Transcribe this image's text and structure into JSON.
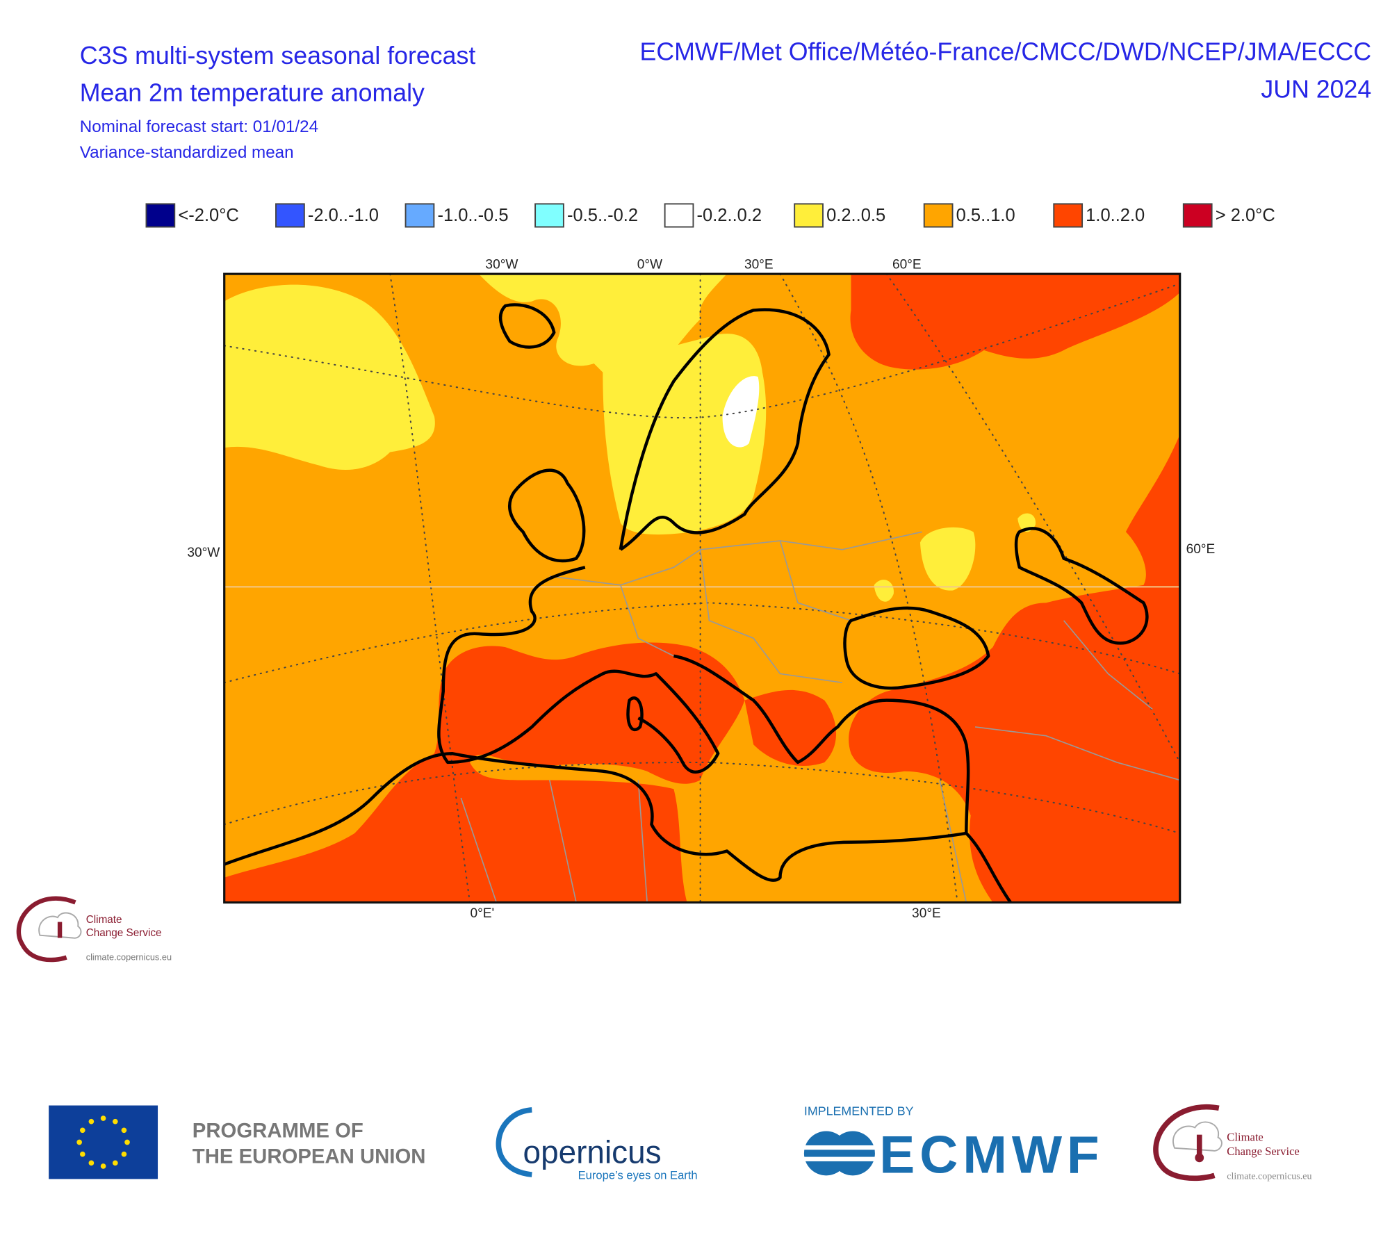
{
  "header": {
    "title": "C3S multi-system seasonal forecast",
    "subtitle": "Mean 2m temperature anomaly",
    "start": "Nominal forecast start: 01/01/24",
    "note": "Variance-standardized mean",
    "providers": "ECMWF/Met Office/Météo-France/CMCC/DWD/NCEP/JMA/ECCC",
    "month": "JUN 2024"
  },
  "legend": [
    {
      "label": "<-2.0°C",
      "color": "#00008c"
    },
    {
      "label": "-2.0..-1.0",
      "color": "#3355ff"
    },
    {
      "label": "-1.0..-0.5",
      "color": "#66aaff"
    },
    {
      "label": "-0.5..-0.2",
      "color": "#80ffff"
    },
    {
      "label": "-0.2..0.2",
      "color": "#ffffff"
    },
    {
      "label": "0.2..0.5",
      "color": "#ffee3a"
    },
    {
      "label": "0.5..1.0",
      "color": "#ffa500"
    },
    {
      "label": "1.0..2.0",
      "color": "#ff4500"
    },
    {
      "label": "> 2.0°C",
      "color": "#cc0022"
    }
  ],
  "map": {
    "top_labels": [
      "30°W",
      "0°W",
      "30°E",
      "60°E"
    ],
    "left_label": "30°W",
    "right_label": "60°E",
    "bottom_labels": [
      "0°E'",
      "30°E"
    ]
  },
  "logos": {
    "c3s_small": {
      "line1": "Climate",
      "line2": "Change Service",
      "url": "climate.copernicus.eu"
    },
    "eu": {
      "line1": "PROGRAMME OF",
      "line2": "THE EUROPEAN UNION"
    },
    "copernicus": {
      "name": "opernicus",
      "tagline": "Europe’s eyes on Earth"
    },
    "ecmwf": {
      "implemented": "IMPLEMENTED BY",
      "name": "ECMWF"
    },
    "c3s": {
      "line1": "Climate",
      "line2": "Change Service",
      "url": "climate.copernicus.eu"
    }
  }
}
